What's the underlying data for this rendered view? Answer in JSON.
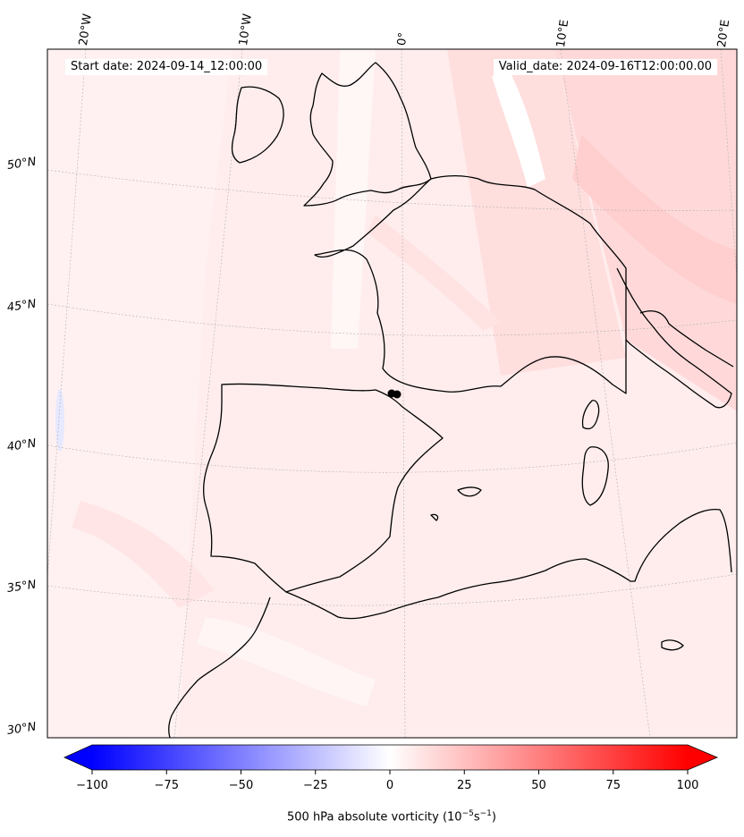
{
  "header": {
    "start_date": "Start date: 2024-09-14_12:00:00",
    "valid_date": "Valid_date: 2024-09-16T12:00:00.00"
  },
  "map": {
    "projection": "conic",
    "extent_lon": [
      -20,
      20
    ],
    "extent_lat": [
      30,
      54
    ],
    "field": "500 hPa absolute vorticity",
    "marker": "black dot near 42N, 0E",
    "lat_labels": [
      "50°N",
      "45°N",
      "40°N",
      "35°N",
      "30°N"
    ],
    "lon_labels": [
      "20°W",
      "10°W",
      "0°",
      "10°E",
      "20°E"
    ]
  },
  "colorbar": {
    "title_text": "500 hPa absolute vorticity (",
    "title_exp1": "−5",
    "title_mid": "s",
    "title_exp2": "−1",
    "title_base": "10",
    "title_end": ")",
    "min": -100,
    "max": 100,
    "ticks": [
      "−100",
      "−75",
      "−50",
      "−25",
      "0",
      "25",
      "50",
      "75",
      "100"
    ],
    "colormap": "bwr",
    "low_color": "#0000ff",
    "mid_color": "#ffffff",
    "high_color": "#ff0000"
  }
}
